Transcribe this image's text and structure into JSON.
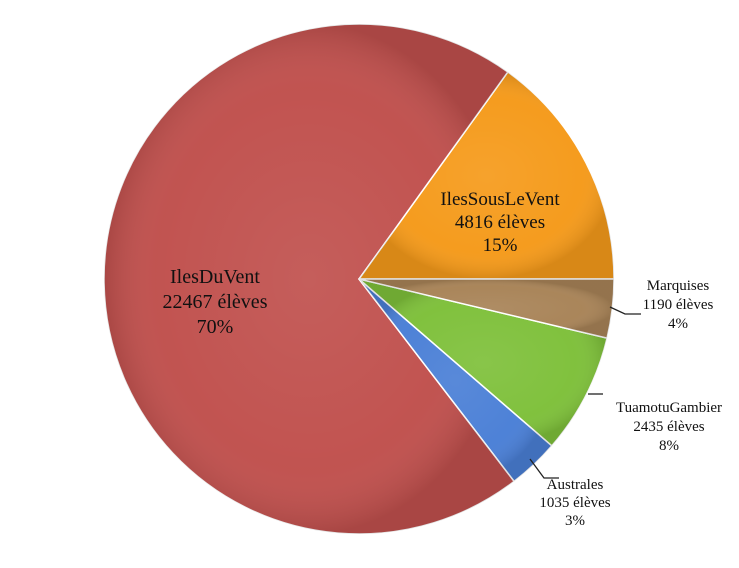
{
  "chart_data": {
    "type": "pie",
    "title": "",
    "start_angle_deg": 0,
    "direction": "counterclockwise",
    "slices": [
      {
        "name": "IlesSousLeVent",
        "value": 4816,
        "unit": "élèves",
        "percent": "15%",
        "value_text": "4816 élèves",
        "color": "#F59A1A"
      },
      {
        "name": "IlesDuVent",
        "value": 22467,
        "unit": "élèves",
        "percent": "70%",
        "value_text": "22467 élèves",
        "color": "#C0504D"
      },
      {
        "name": "Australes",
        "value": 1035,
        "unit": "élèves",
        "percent": "3%",
        "value_text": "1035 élèves",
        "color": "#4A7FD6"
      },
      {
        "name": "TuamotuGambier",
        "value": 2435,
        "unit": "élèves",
        "percent": "8%",
        "value_text": "2435 élèves",
        "color": "#7EC03A"
      },
      {
        "name": "Marquises",
        "value": 1190,
        "unit": "élèves",
        "percent": "4%",
        "value_text": "1190 élèves",
        "color": "#A88357"
      }
    ],
    "legend": "none",
    "labels": "inside for large slices, outside with leader lines for small slices"
  }
}
